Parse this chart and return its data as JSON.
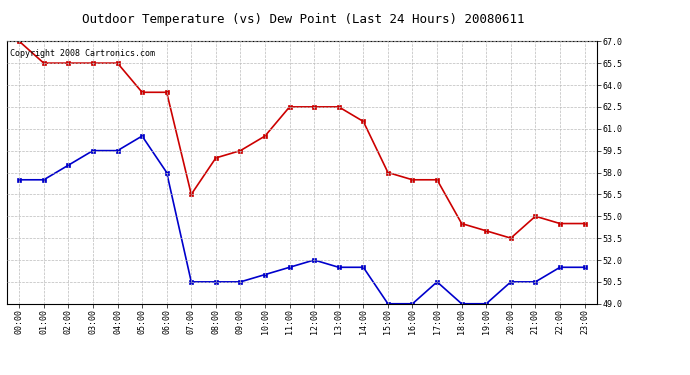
{
  "title": "Outdoor Temperature (vs) Dew Point (Last 24 Hours) 20080611",
  "copyright_text": "Copyright 2008 Cartronics.com",
  "hours": [
    0,
    1,
    2,
    3,
    4,
    5,
    6,
    7,
    8,
    9,
    10,
    11,
    12,
    13,
    14,
    15,
    16,
    17,
    18,
    19,
    20,
    21,
    22,
    23
  ],
  "hour_labels": [
    "00:00",
    "01:00",
    "02:00",
    "03:00",
    "04:00",
    "05:00",
    "06:00",
    "07:00",
    "08:00",
    "09:00",
    "10:00",
    "11:00",
    "12:00",
    "13:00",
    "14:00",
    "15:00",
    "16:00",
    "17:00",
    "18:00",
    "19:00",
    "20:00",
    "21:00",
    "22:00",
    "23:00"
  ],
  "temp_red": [
    67.0,
    65.5,
    65.5,
    65.5,
    65.5,
    63.5,
    63.5,
    56.5,
    59.0,
    59.5,
    60.5,
    62.5,
    62.5,
    62.5,
    61.5,
    58.0,
    57.5,
    57.5,
    54.5,
    54.0,
    53.5,
    55.0,
    54.5,
    54.5
  ],
  "temp_blue": [
    57.5,
    57.5,
    58.5,
    59.5,
    59.5,
    60.5,
    58.0,
    50.5,
    50.5,
    50.5,
    51.0,
    51.5,
    52.0,
    51.5,
    51.5,
    49.0,
    49.0,
    50.5,
    49.0,
    49.0,
    50.5,
    50.5,
    51.5,
    51.5
  ],
  "ylim_min": 49.0,
  "ylim_max": 67.0,
  "yticks": [
    49.0,
    50.5,
    52.0,
    53.5,
    55.0,
    56.5,
    58.0,
    59.5,
    61.0,
    62.5,
    64.0,
    65.5,
    67.0
  ],
  "red_color": "#cc0000",
  "blue_color": "#0000cc",
  "grid_color": "#bbbbbb",
  "background_color": "#ffffff",
  "plot_bg_color": "#ffffff",
  "marker": "s",
  "marker_size": 3,
  "linewidth": 1.2,
  "title_fontsize": 9,
  "tick_fontsize": 6,
  "copyright_fontsize": 6
}
